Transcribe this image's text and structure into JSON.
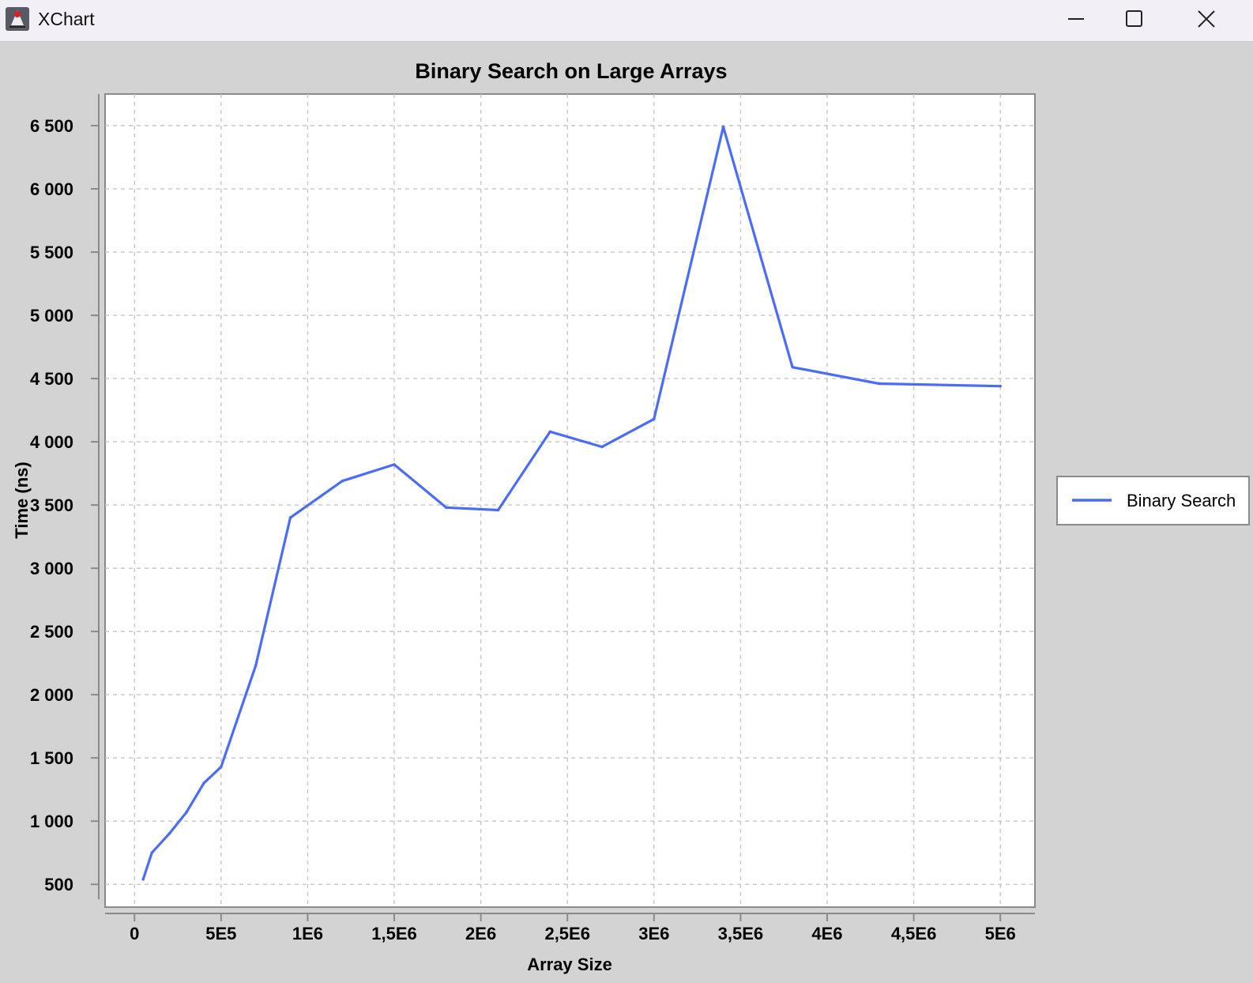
{
  "window": {
    "title": "XChart",
    "icon": "java-duke-icon",
    "controls": [
      "minimize-icon",
      "maximize-icon",
      "close-icon"
    ]
  },
  "chart_data": {
    "type": "line",
    "title": "Binary Search on Large Arrays",
    "xlabel": "Array Size",
    "ylabel": "Time (ns)",
    "xlim": [
      -170000,
      5200000
    ],
    "ylim": [
      320,
      6750
    ],
    "x_ticks": [
      0,
      500000,
      1000000,
      1500000,
      2000000,
      2500000,
      3000000,
      3500000,
      4000000,
      4500000,
      5000000
    ],
    "x_tick_labels": [
      "0",
      "5E5",
      "1E6",
      "1,5E6",
      "2E6",
      "2,5E6",
      "3E6",
      "3,5E6",
      "4E6",
      "4,5E6",
      "5E6"
    ],
    "y_ticks": [
      500,
      1000,
      1500,
      2000,
      2500,
      3000,
      3500,
      4000,
      4500,
      5000,
      5500,
      6000,
      6500
    ],
    "y_tick_labels": [
      "500",
      "1 000",
      "1 500",
      "2 000",
      "2 500",
      "3 000",
      "3 500",
      "4 000",
      "4 500",
      "5 000",
      "5 500",
      "6 000",
      "6 500"
    ],
    "grid": true,
    "legend_position": "outside-right",
    "series": [
      {
        "name": "Binary Search",
        "color": "#4a6cf7",
        "x": [
          50000,
          100000,
          200000,
          300000,
          400000,
          500000,
          700000,
          900000,
          1200000,
          1500000,
          1800000,
          2100000,
          2400000,
          2700000,
          3000000,
          3400000,
          3800000,
          4300000,
          5000000
        ],
        "y": [
          540,
          750,
          900,
          1070,
          1300,
          1430,
          2230,
          3400,
          3690,
          3820,
          3480,
          3460,
          4080,
          3960,
          4180,
          6490,
          4590,
          4460,
          4440
        ]
      }
    ]
  }
}
